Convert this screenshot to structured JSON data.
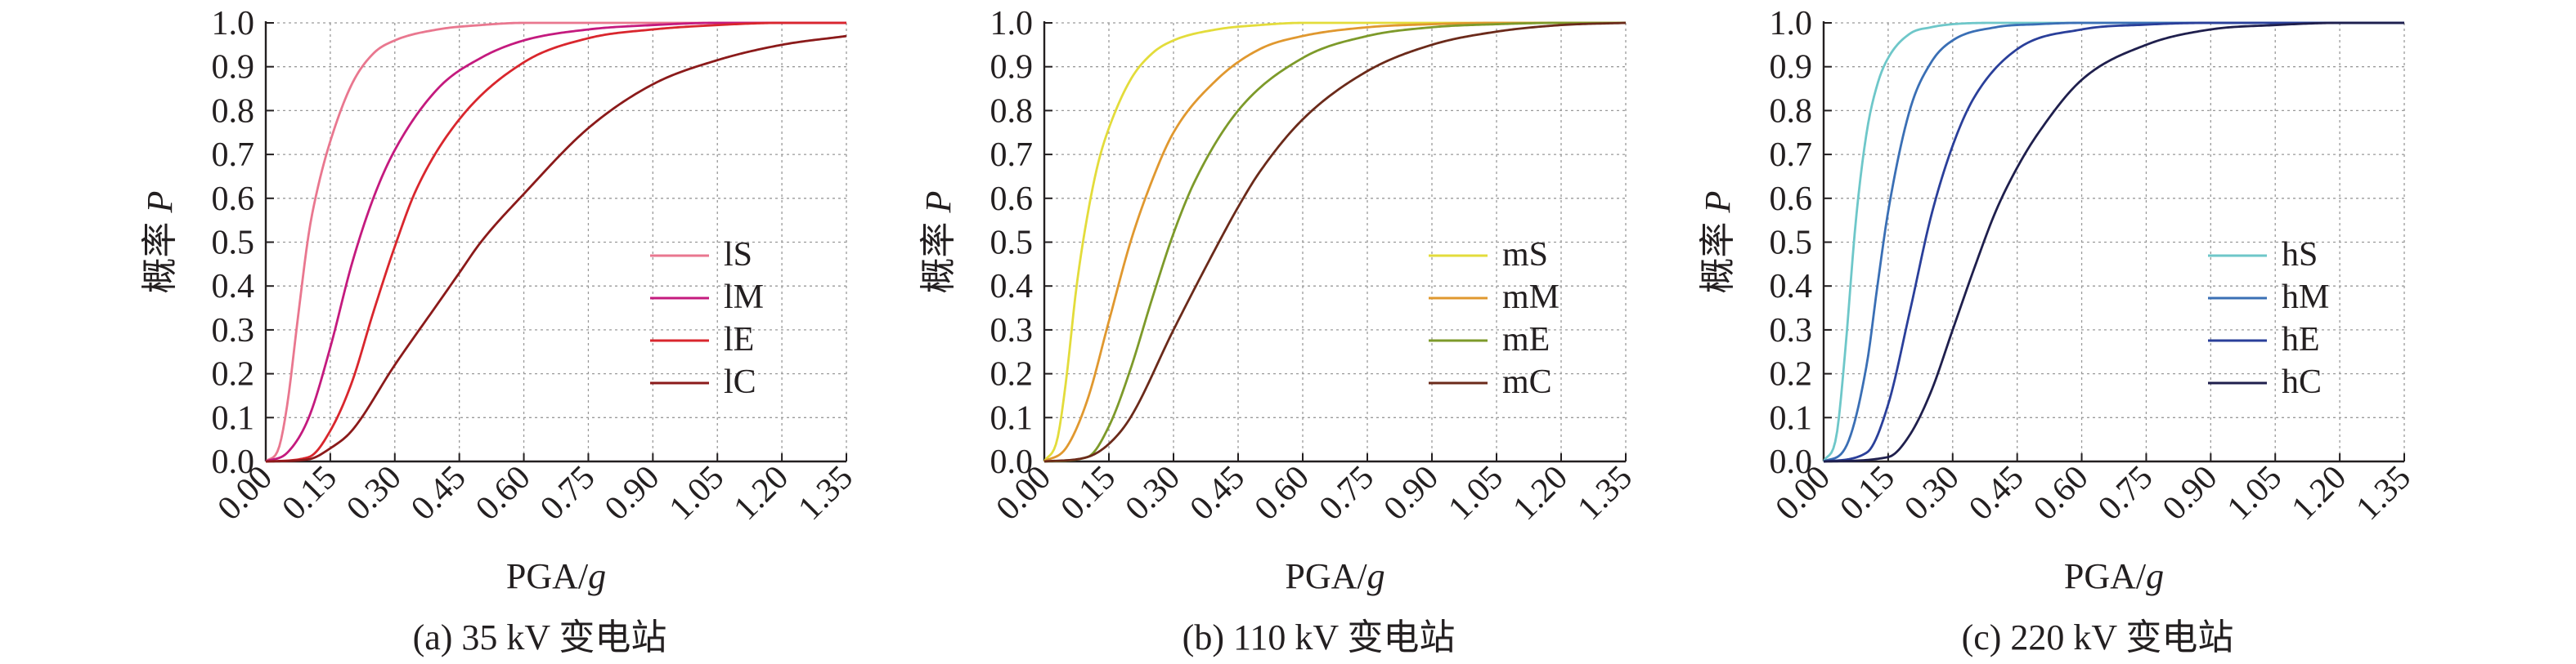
{
  "chart_data": [
    {
      "type": "line",
      "caption": "(a) 35 kV 变电站",
      "xlabel_main": "PGA/",
      "xlabel_italic": "g",
      "ylabel_main": "概率 ",
      "ylabel_italic": "P",
      "xlim": [
        0,
        1.35
      ],
      "ylim": [
        0,
        1
      ],
      "x_ticks": [
        "0.00",
        "0.15",
        "0.30",
        "0.45",
        "0.60",
        "0.75",
        "0.90",
        "1.05",
        "1.20",
        "1.35"
      ],
      "y_ticks": [
        "0.0",
        "0.1",
        "0.2",
        "0.3",
        "0.4",
        "0.5",
        "0.6",
        "0.7",
        "0.8",
        "0.9",
        "1.0"
      ],
      "grid": true,
      "legend_position": "right-middle",
      "series": [
        {
          "name": "lS",
          "color": "#e9778f",
          "x": [
            0.0,
            0.03,
            0.05,
            0.075,
            0.1,
            0.12,
            0.15,
            0.2,
            0.25,
            0.3,
            0.4,
            0.5,
            0.6,
            0.8,
            1.0,
            1.35
          ],
          "y": [
            0.0,
            0.03,
            0.13,
            0.33,
            0.52,
            0.62,
            0.73,
            0.86,
            0.93,
            0.96,
            0.985,
            0.995,
            1.0,
            1.0,
            1.0,
            1.0
          ]
        },
        {
          "name": "lM",
          "color": "#c41a7e",
          "x": [
            0.0,
            0.05,
            0.1,
            0.15,
            0.2,
            0.25,
            0.3,
            0.4,
            0.5,
            0.6,
            0.75,
            0.9,
            1.05,
            1.2,
            1.35
          ],
          "y": [
            0.0,
            0.02,
            0.1,
            0.26,
            0.45,
            0.6,
            0.71,
            0.85,
            0.92,
            0.96,
            0.985,
            0.995,
            1.0,
            1.0,
            1.0
          ]
        },
        {
          "name": "lE",
          "color": "#d9262d",
          "x": [
            0.0,
            0.1,
            0.15,
            0.2,
            0.25,
            0.3,
            0.35,
            0.45,
            0.6,
            0.75,
            0.9,
            1.05,
            1.2,
            1.35
          ],
          "y": [
            0.0,
            0.01,
            0.07,
            0.18,
            0.34,
            0.49,
            0.62,
            0.78,
            0.91,
            0.965,
            0.985,
            0.995,
            1.0,
            1.0
          ]
        },
        {
          "name": "lC",
          "color": "#8b1a1a",
          "x": [
            0.0,
            0.1,
            0.15,
            0.2,
            0.3,
            0.4,
            0.45,
            0.5,
            0.6,
            0.75,
            0.9,
            1.05,
            1.2,
            1.35
          ],
          "y": [
            0.0,
            0.005,
            0.03,
            0.07,
            0.22,
            0.36,
            0.43,
            0.5,
            0.61,
            0.76,
            0.86,
            0.915,
            0.95,
            0.97
          ]
        }
      ]
    },
    {
      "type": "line",
      "caption": "(b) 110 kV 变电站",
      "xlabel_main": "PGA/",
      "xlabel_italic": "g",
      "ylabel_main": "概率 ",
      "ylabel_italic": "P",
      "xlim": [
        0,
        1.35
      ],
      "ylim": [
        0,
        1
      ],
      "x_ticks": [
        "0.00",
        "0.15",
        "0.30",
        "0.45",
        "0.60",
        "0.75",
        "0.90",
        "1.05",
        "1.20",
        "1.35"
      ],
      "y_ticks": [
        "0.0",
        "0.1",
        "0.2",
        "0.3",
        "0.4",
        "0.5",
        "0.6",
        "0.7",
        "0.8",
        "0.9",
        "1.0"
      ],
      "grid": true,
      "legend_position": "right-middle",
      "series": [
        {
          "name": "mS",
          "color": "#e3dc3b",
          "x": [
            0.0,
            0.03,
            0.05,
            0.075,
            0.1,
            0.125,
            0.15,
            0.2,
            0.25,
            0.3,
            0.4,
            0.5,
            0.6,
            0.8,
            1.0,
            1.35
          ],
          "y": [
            0.0,
            0.05,
            0.18,
            0.4,
            0.56,
            0.68,
            0.76,
            0.87,
            0.93,
            0.96,
            0.985,
            0.995,
            1.0,
            1.0,
            1.0,
            1.0
          ]
        },
        {
          "name": "mM",
          "color": "#e0982f",
          "x": [
            0.0,
            0.05,
            0.1,
            0.15,
            0.2,
            0.25,
            0.3,
            0.4,
            0.5,
            0.6,
            0.75,
            0.9,
            1.05,
            1.35
          ],
          "y": [
            0.0,
            0.03,
            0.14,
            0.32,
            0.5,
            0.64,
            0.75,
            0.87,
            0.94,
            0.97,
            0.99,
            0.997,
            1.0,
            1.0
          ]
        },
        {
          "name": "mE",
          "color": "#7d9a2a",
          "x": [
            0.0,
            0.1,
            0.15,
            0.2,
            0.25,
            0.3,
            0.35,
            0.45,
            0.6,
            0.75,
            0.9,
            1.05,
            1.2,
            1.35
          ],
          "y": [
            0.0,
            0.01,
            0.08,
            0.21,
            0.37,
            0.52,
            0.64,
            0.8,
            0.92,
            0.97,
            0.99,
            0.997,
            1.0,
            1.0
          ]
        },
        {
          "name": "mC",
          "color": "#6b2a1a",
          "x": [
            0.0,
            0.1,
            0.15,
            0.2,
            0.3,
            0.4,
            0.45,
            0.5,
            0.6,
            0.75,
            0.9,
            1.05,
            1.2,
            1.35
          ],
          "y": [
            0.0,
            0.01,
            0.04,
            0.1,
            0.3,
            0.49,
            0.58,
            0.66,
            0.78,
            0.89,
            0.95,
            0.98,
            0.995,
            1.0
          ]
        }
      ]
    },
    {
      "type": "line",
      "caption": "(c) 220 kV 变电站",
      "xlabel_main": "PGA/",
      "xlabel_italic": "g",
      "ylabel_main": "概率 ",
      "ylabel_italic": "P",
      "xlim": [
        0,
        1.35
      ],
      "ylim": [
        0,
        1
      ],
      "x_ticks": [
        "0.00",
        "0.15",
        "0.30",
        "0.45",
        "0.60",
        "0.75",
        "0.90",
        "1.05",
        "1.20",
        "1.35"
      ],
      "y_ticks": [
        "0.0",
        "0.1",
        "0.2",
        "0.3",
        "0.4",
        "0.5",
        "0.6",
        "0.7",
        "0.8",
        "0.9",
        "1.0"
      ],
      "grid": true,
      "legend_position": "right-middle",
      "series": [
        {
          "name": "hS",
          "color": "#6ec7c9",
          "x": [
            0.0,
            0.03,
            0.05,
            0.075,
            0.1,
            0.125,
            0.15,
            0.2,
            0.25,
            0.3,
            0.4,
            0.6,
            1.35
          ],
          "y": [
            0.0,
            0.06,
            0.25,
            0.55,
            0.75,
            0.86,
            0.92,
            0.975,
            0.99,
            0.997,
            1.0,
            1.0,
            1.0
          ]
        },
        {
          "name": "hM",
          "color": "#3a6fb5",
          "x": [
            0.0,
            0.05,
            0.1,
            0.125,
            0.15,
            0.2,
            0.25,
            0.3,
            0.4,
            0.5,
            0.6,
            0.75,
            1.35
          ],
          "y": [
            0.0,
            0.03,
            0.22,
            0.4,
            0.57,
            0.8,
            0.91,
            0.96,
            0.99,
            0.997,
            1.0,
            1.0,
            1.0
          ]
        },
        {
          "name": "hE",
          "color": "#2a3f9a",
          "x": [
            0.0,
            0.1,
            0.15,
            0.2,
            0.25,
            0.3,
            0.35,
            0.45,
            0.6,
            0.75,
            0.9,
            1.05,
            1.35
          ],
          "y": [
            0.0,
            0.02,
            0.13,
            0.34,
            0.56,
            0.72,
            0.83,
            0.94,
            0.985,
            0.996,
            1.0,
            1.0,
            1.0
          ]
        },
        {
          "name": "hC",
          "color": "#1f1f4d",
          "x": [
            0.0,
            0.15,
            0.2,
            0.25,
            0.3,
            0.35,
            0.4,
            0.45,
            0.5,
            0.6,
            0.75,
            0.9,
            1.05,
            1.2,
            1.35
          ],
          "y": [
            0.0,
            0.01,
            0.06,
            0.16,
            0.3,
            0.44,
            0.57,
            0.67,
            0.75,
            0.87,
            0.95,
            0.985,
            0.995,
            1.0,
            1.0
          ]
        }
      ]
    }
  ]
}
